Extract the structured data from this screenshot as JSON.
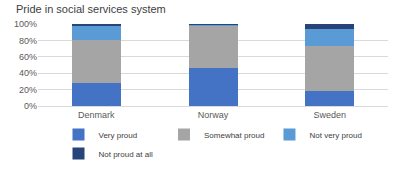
{
  "chart_data": {
    "type": "bar",
    "title": "Pride in social services system",
    "categories": [
      "Denmark",
      "Norway",
      "Sweden"
    ],
    "stacked": true,
    "series": [
      {
        "name": "Very proud",
        "color": "#4472c4",
        "values": [
          28,
          46,
          18
        ]
      },
      {
        "name": "Somewhat proud",
        "color": "#a5a5a5",
        "values": [
          52,
          51,
          55
        ]
      },
      {
        "name": "Not very proud",
        "color": "#5b9bd5",
        "values": [
          18,
          2,
          21
        ]
      },
      {
        "name": "Not proud at all",
        "color": "#264478",
        "values": [
          2,
          1,
          6
        ]
      }
    ],
    "ylim": [
      0,
      100
    ],
    "yticks": [
      {
        "value": 0,
        "label": "0%"
      },
      {
        "value": 20,
        "label": "20%"
      },
      {
        "value": 40,
        "label": "40%"
      },
      {
        "value": 60,
        "label": "60%"
      },
      {
        "value": 80,
        "label": "80%"
      },
      {
        "value": 100,
        "label": "100%"
      }
    ],
    "grid": true,
    "legend": "bottom"
  }
}
